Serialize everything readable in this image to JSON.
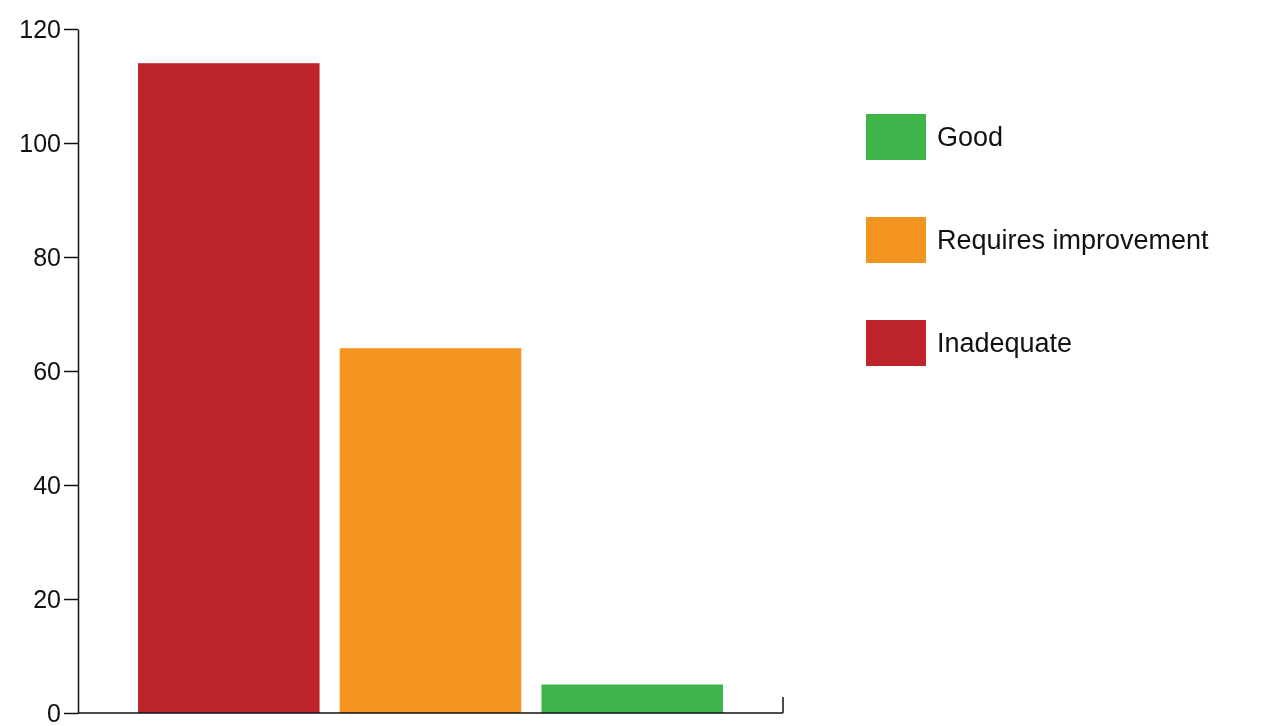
{
  "chart_data": {
    "type": "bar",
    "categories": [
      null,
      null,
      null
    ],
    "series": [
      {
        "name": "Good",
        "color": "#3db54a",
        "values": [
          null,
          null,
          5
        ]
      },
      {
        "name": "Requires improvement",
        "color": "#f39421",
        "values": [
          null,
          64,
          null
        ]
      },
      {
        "name": "Inadequate",
        "color": "#be242b",
        "values": [
          114,
          null,
          null
        ]
      }
    ],
    "ylim": [
      0,
      120
    ],
    "yticks": [
      0,
      20,
      40,
      60,
      80,
      100,
      120
    ],
    "legend": "top right"
  }
}
